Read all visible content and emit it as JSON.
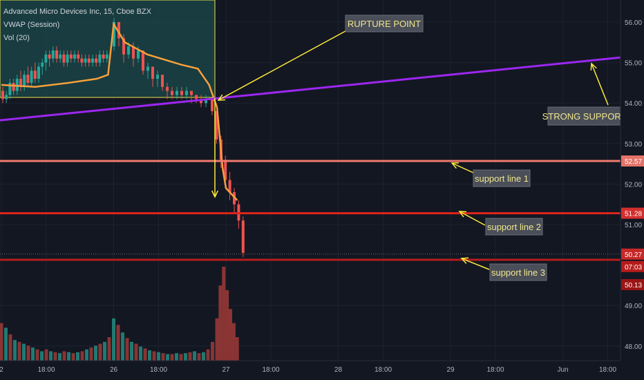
{
  "legend": {
    "symbol": "Advanced Micro Devices Inc, 15, Cboe BZX",
    "indicator1": "VWAP (Session)",
    "indicator2": "Vol (20)"
  },
  "chart_data": {
    "type": "candlestick",
    "ylim": [
      47.6,
      56.4
    ],
    "y_ticks": [
      "56.00",
      "55.00",
      "54.00",
      "53.00",
      "52.00",
      "51.00",
      "49.00",
      "48.00"
    ],
    "x_ticks": [
      {
        "label": "2",
        "x": 0.0
      },
      {
        "label": "18:00",
        "x": 0.4
      },
      {
        "label": "26",
        "x": 1.0
      },
      {
        "label": "18:00",
        "x": 1.4
      },
      {
        "label": "27",
        "x": 2.0
      },
      {
        "label": "18:00",
        "x": 2.4
      },
      {
        "label": "28",
        "x": 3.0
      },
      {
        "label": "18:00",
        "x": 3.4
      },
      {
        "label": "29",
        "x": 4.0
      },
      {
        "label": "18:00",
        "x": 4.4
      },
      {
        "label": "Jun",
        "x": 5.0
      },
      {
        "label": "18:00",
        "x": 5.4
      }
    ],
    "candles_session1": [
      [
        54.3,
        54.1,
        54.4,
        54.0
      ],
      [
        54.1,
        54.2,
        54.3,
        54.0
      ],
      [
        54.2,
        54.5,
        54.6,
        54.1
      ],
      [
        54.5,
        54.3,
        54.6,
        54.2
      ],
      [
        54.3,
        54.6,
        54.7,
        54.2
      ],
      [
        54.6,
        54.4,
        54.8,
        54.3
      ],
      [
        54.4,
        54.7,
        54.8,
        54.3
      ],
      [
        54.7,
        54.5,
        54.9,
        54.4
      ],
      [
        54.5,
        54.8,
        54.9,
        54.4
      ],
      [
        54.8,
        54.6,
        55.0,
        54.5
      ],
      [
        54.6,
        54.9,
        55.0,
        54.5
      ],
      [
        54.9,
        55.0,
        55.1,
        54.7
      ],
      [
        55.0,
        55.2,
        55.3,
        54.8
      ],
      [
        55.2,
        55.1,
        55.3,
        54.9
      ],
      [
        55.1,
        55.3,
        55.4,
        55.0
      ],
      [
        55.3,
        55.1,
        55.4,
        55.0
      ],
      [
        55.1,
        55.2,
        55.3,
        55.0
      ],
      [
        55.2,
        55.0,
        55.3,
        54.9
      ],
      [
        55.0,
        55.2,
        55.3,
        54.9
      ],
      [
        55.2,
        55.1,
        55.3,
        55.0
      ],
      [
        55.1,
        55.2,
        55.3,
        55.0
      ],
      [
        55.2,
        55.1,
        55.3,
        55.0
      ],
      [
        55.1,
        55.0,
        55.2,
        54.9
      ],
      [
        55.0,
        55.1,
        55.2,
        54.9
      ],
      [
        55.1,
        55.0,
        55.2,
        54.9
      ],
      [
        55.0,
        55.1,
        55.2,
        54.9
      ],
      [
        55.1,
        55.0,
        55.2,
        54.9
      ],
      [
        55.0,
        55.2,
        55.3,
        54.9
      ],
      [
        55.2,
        55.1,
        55.3,
        55.0
      ],
      [
        55.1,
        55.2,
        55.3,
        55.0
      ]
    ],
    "candles_session2": [
      [
        55.4,
        56.0,
        56.1,
        55.3
      ],
      [
        56.0,
        55.6,
        56.0,
        55.4
      ],
      [
        55.6,
        55.2,
        55.7,
        55.0
      ],
      [
        55.2,
        55.4,
        55.5,
        55.1
      ],
      [
        55.4,
        55.1,
        55.5,
        54.9
      ],
      [
        55.1,
        55.3,
        55.4,
        55.0
      ],
      [
        55.3,
        54.8,
        55.3,
        54.7
      ],
      [
        54.8,
        54.9,
        55.0,
        54.6
      ],
      [
        54.9,
        54.6,
        54.9,
        54.4
      ],
      [
        54.6,
        54.7,
        54.8,
        54.4
      ],
      [
        54.7,
        54.4,
        54.7,
        54.3
      ],
      [
        54.4,
        54.3,
        54.5,
        54.1
      ],
      [
        54.3,
        54.2,
        54.4,
        54.1
      ],
      [
        54.2,
        54.3,
        54.4,
        54.1
      ],
      [
        54.3,
        54.2,
        54.4,
        54.1
      ],
      [
        54.2,
        54.3,
        54.4,
        54.1
      ],
      [
        54.3,
        54.2,
        54.3,
        54.0
      ],
      [
        54.2,
        54.1,
        54.2,
        54.0
      ],
      [
        54.1,
        54.0,
        54.2,
        53.9
      ],
      [
        54.0,
        54.1,
        54.2,
        53.9
      ]
    ],
    "candles_session3": [
      [
        54.1,
        53.8,
        54.1,
        53.7
      ],
      [
        53.8,
        53.1,
        53.8,
        53.0
      ],
      [
        53.1,
        52.6,
        53.2,
        52.4
      ],
      [
        52.6,
        52.1,
        52.7,
        51.9
      ],
      [
        52.1,
        51.8,
        52.3,
        51.6
      ],
      [
        51.8,
        51.5,
        51.9,
        51.3
      ],
      [
        51.5,
        51.1,
        51.6,
        50.9
      ],
      [
        51.1,
        50.3,
        51.2,
        50.2
      ]
    ],
    "vwap": [
      [
        0.0,
        54.45
      ],
      [
        0.3,
        54.4
      ],
      [
        0.6,
        54.5
      ],
      [
        0.85,
        54.6
      ],
      [
        0.95,
        54.7
      ],
      [
        1.0,
        55.95
      ],
      [
        1.1,
        55.5
      ],
      [
        1.3,
        55.2
      ],
      [
        1.6,
        54.95
      ],
      [
        1.75,
        54.85
      ],
      [
        1.85,
        54.45
      ],
      [
        1.92,
        53.9
      ],
      [
        1.97,
        52.4
      ],
      [
        2.0,
        51.9
      ],
      [
        2.1,
        51.6
      ]
    ],
    "volume": [
      {
        "x": 0.0,
        "v": 40,
        "up": false
      },
      {
        "x": 0.04,
        "v": 35,
        "up": true
      },
      {
        "x": 0.08,
        "v": 28,
        "up": false
      },
      {
        "x": 0.12,
        "v": 22,
        "up": true
      },
      {
        "x": 0.16,
        "v": 20,
        "up": false
      },
      {
        "x": 0.2,
        "v": 18,
        "up": true
      },
      {
        "x": 0.24,
        "v": 16,
        "up": false
      },
      {
        "x": 0.28,
        "v": 14,
        "up": true
      },
      {
        "x": 0.32,
        "v": 12,
        "up": false
      },
      {
        "x": 0.36,
        "v": 10,
        "up": true
      },
      {
        "x": 0.4,
        "v": 12,
        "up": false
      },
      {
        "x": 0.44,
        "v": 10,
        "up": true
      },
      {
        "x": 0.48,
        "v": 9,
        "up": false
      },
      {
        "x": 0.52,
        "v": 8,
        "up": true
      },
      {
        "x": 0.56,
        "v": 10,
        "up": false
      },
      {
        "x": 0.6,
        "v": 9,
        "up": true
      },
      {
        "x": 0.64,
        "v": 8,
        "up": false
      },
      {
        "x": 0.68,
        "v": 9,
        "up": true
      },
      {
        "x": 0.72,
        "v": 10,
        "up": false
      },
      {
        "x": 0.76,
        "v": 12,
        "up": true
      },
      {
        "x": 0.8,
        "v": 14,
        "up": false
      },
      {
        "x": 0.84,
        "v": 16,
        "up": true
      },
      {
        "x": 0.88,
        "v": 18,
        "up": false
      },
      {
        "x": 0.92,
        "v": 20,
        "up": true
      },
      {
        "x": 0.96,
        "v": 25,
        "up": false
      },
      {
        "x": 1.0,
        "v": 45,
        "up": true
      },
      {
        "x": 1.04,
        "v": 38,
        "up": false
      },
      {
        "x": 1.08,
        "v": 30,
        "up": true
      },
      {
        "x": 1.12,
        "v": 24,
        "up": false
      },
      {
        "x": 1.16,
        "v": 20,
        "up": true
      },
      {
        "x": 1.2,
        "v": 18,
        "up": false
      },
      {
        "x": 1.24,
        "v": 15,
        "up": true
      },
      {
        "x": 1.28,
        "v": 13,
        "up": false
      },
      {
        "x": 1.32,
        "v": 11,
        "up": true
      },
      {
        "x": 1.36,
        "v": 10,
        "up": false
      },
      {
        "x": 1.4,
        "v": 9,
        "up": true
      },
      {
        "x": 1.44,
        "v": 8,
        "up": false
      },
      {
        "x": 1.48,
        "v": 7,
        "up": true
      },
      {
        "x": 1.52,
        "v": 7,
        "up": false
      },
      {
        "x": 1.56,
        "v": 8,
        "up": true
      },
      {
        "x": 1.6,
        "v": 7,
        "up": false
      },
      {
        "x": 1.64,
        "v": 8,
        "up": true
      },
      {
        "x": 1.68,
        "v": 9,
        "up": false
      },
      {
        "x": 1.72,
        "v": 10,
        "up": true
      },
      {
        "x": 1.76,
        "v": 8,
        "up": false
      },
      {
        "x": 1.8,
        "v": 9,
        "up": true
      },
      {
        "x": 1.84,
        "v": 12,
        "up": false
      },
      {
        "x": 1.88,
        "v": 20,
        "up": false
      },
      {
        "x": 1.92,
        "v": 45,
        "up": false
      },
      {
        "x": 1.95,
        "v": 80,
        "up": false
      },
      {
        "x": 1.98,
        "v": 100,
        "up": false
      },
      {
        "x": 2.01,
        "v": 75,
        "up": false
      },
      {
        "x": 2.04,
        "v": 55,
        "up": false
      },
      {
        "x": 2.07,
        "v": 40,
        "up": false
      },
      {
        "x": 2.1,
        "v": 25,
        "up": false
      }
    ],
    "levels": {
      "support1": {
        "value": 52.57,
        "label": "52.57",
        "color": "#ef7b6f"
      },
      "support2": {
        "value": 51.28,
        "label": "51.28",
        "color": "#e0241b"
      },
      "support3": {
        "value": 50.13,
        "label": "50.13",
        "color": "#b71c1c"
      },
      "last_price": {
        "value": 50.27,
        "label": "50.27"
      },
      "countdown": "07:03"
    },
    "trendline": {
      "x0": -0.1,
      "y0": 53.55,
      "x1": 5.6,
      "y1": 55.15,
      "color": "#9c27f0"
    },
    "annotations": {
      "rupture": "RUPTURE POINT",
      "strong": "STRONG SUPPORT",
      "sl1": "support line 1",
      "sl2": "support line 2",
      "sl3": "support line 3"
    },
    "colors": {
      "up": "#26a69a",
      "down": "#ef5350",
      "vwap": "#f7a03c",
      "annot": "#ffeb3b",
      "bg": "#131722"
    }
  }
}
